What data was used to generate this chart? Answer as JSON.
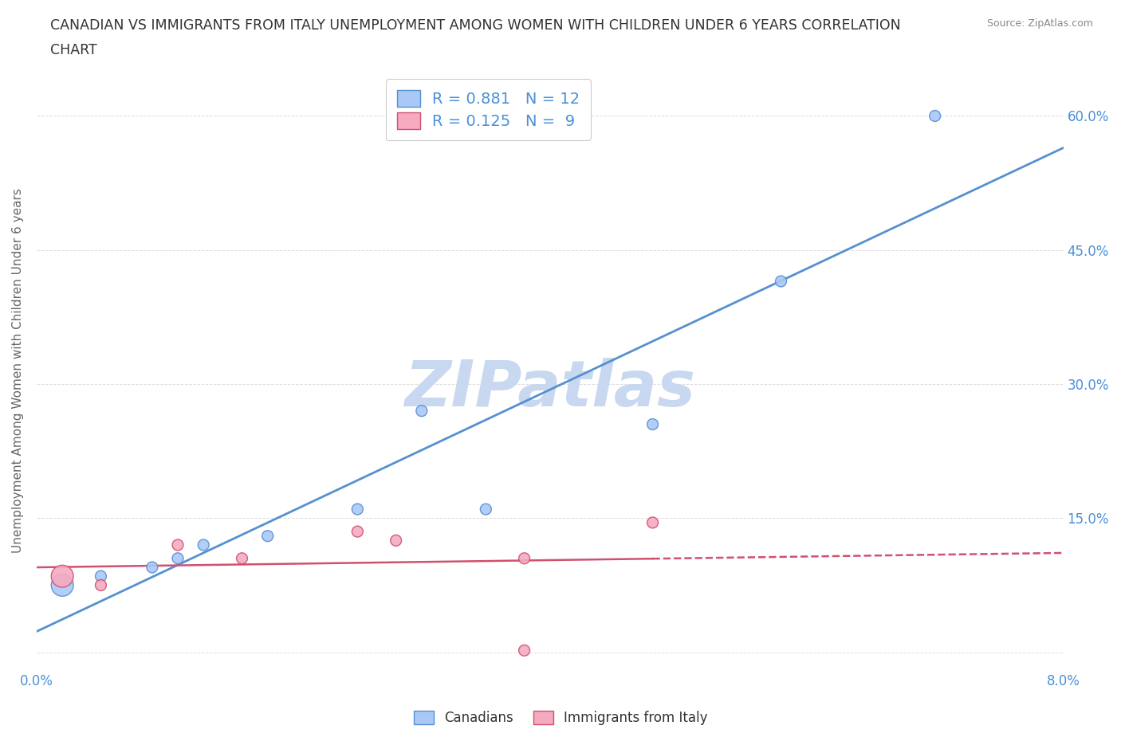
{
  "title_line1": "CANADIAN VS IMMIGRANTS FROM ITALY UNEMPLOYMENT AMONG WOMEN WITH CHILDREN UNDER 6 YEARS CORRELATION",
  "title_line2": "CHART",
  "source": "Source: ZipAtlas.com",
  "ylabel": "Unemployment Among Women with Children Under 6 years",
  "watermark": "ZIPatlas",
  "canadians_x": [
    0.002,
    0.005,
    0.009,
    0.011,
    0.013,
    0.018,
    0.025,
    0.03,
    0.035,
    0.048,
    0.058,
    0.07
  ],
  "canadians_y": [
    0.075,
    0.085,
    0.095,
    0.105,
    0.12,
    0.13,
    0.16,
    0.27,
    0.16,
    0.255,
    0.415,
    0.6
  ],
  "canadians_sizes": [
    400,
    100,
    100,
    100,
    100,
    100,
    100,
    100,
    100,
    100,
    100,
    100
  ],
  "italians_x": [
    0.002,
    0.005,
    0.011,
    0.016,
    0.025,
    0.028,
    0.038,
    0.048,
    0.038
  ],
  "italians_y": [
    0.085,
    0.075,
    0.12,
    0.105,
    0.135,
    0.125,
    0.002,
    0.145,
    0.105
  ],
  "italians_sizes": [
    400,
    100,
    100,
    100,
    100,
    100,
    100,
    100,
    100
  ],
  "canadian_color": "#aac8f5",
  "canadian_edge_color": "#5590d0",
  "italian_color": "#f5aac0",
  "italian_edge_color": "#d05070",
  "R_canadian": 0.881,
  "N_canadian": 12,
  "R_italian": 0.125,
  "N_italian": 9,
  "xlim": [
    0.0,
    0.08
  ],
  "ylim": [
    -0.02,
    0.65
  ],
  "xticks": [
    0.0,
    0.01,
    0.02,
    0.03,
    0.04,
    0.05,
    0.06,
    0.07,
    0.08
  ],
  "xtick_labels": [
    "0.0%",
    "",
    "",
    "",
    "",
    "",
    "",
    "",
    "8.0%"
  ],
  "yticks": [
    0.0,
    0.15,
    0.3,
    0.45,
    0.6
  ],
  "ytick_labels_right": [
    "",
    "15.0%",
    "30.0%",
    "45.0%",
    "60.0%"
  ],
  "background_color": "#ffffff",
  "grid_color": "#dddddd",
  "title_color": "#333333",
  "tick_color": "#4a90d9",
  "source_color": "#888888",
  "watermark_color": "#c8d8f0",
  "legend_color": "#4a90d9"
}
